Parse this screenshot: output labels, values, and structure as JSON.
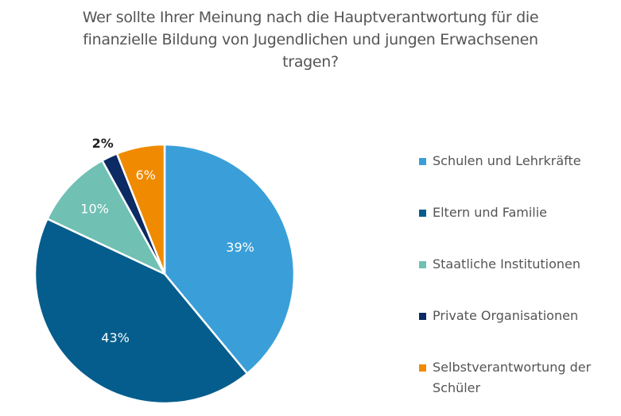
{
  "chart_data": {
    "type": "pie",
    "title": "Wer sollte Ihrer Meinung nach die Hauptverantwortung für die finanzielle Bildung von Jugendlichen und jungen Erwachsenen tragen?",
    "title_lines": [
      "Wer sollte Ihrer Meinung nach die Hauptverantwortung für die",
      "finanzielle Bildung von Jugendlichen und jungen Erwachsenen",
      "tragen?"
    ],
    "unit": "%",
    "legend_position": "right",
    "start": "top, clockwise",
    "categories": [
      "Schulen und Lehrkräfte",
      "Eltern und Familie",
      "Staatliche Institutionen",
      "Private Organisationen",
      "Selbstverantwortung der Schüler"
    ],
    "legend_lines": [
      [
        "Schulen und Lehrkräfte"
      ],
      [
        "Eltern und Familie"
      ],
      [
        "Staatliche Institutionen"
      ],
      [
        "Private Organisationen"
      ],
      [
        "Selbstverantwortung der",
        "Schüler"
      ]
    ],
    "values": [
      39,
      43,
      10,
      2,
      6
    ],
    "data_labels": [
      "39%",
      "43%",
      "10%",
      "2%",
      "6%"
    ],
    "colors": [
      "#3a9fd8",
      "#045d8c",
      "#70c0b4",
      "#0c2a63",
      "#f08a00"
    ],
    "label_colors": [
      "#ffffff",
      "#ffffff",
      "#ffffff",
      "#222222",
      "#ffffff"
    ]
  }
}
